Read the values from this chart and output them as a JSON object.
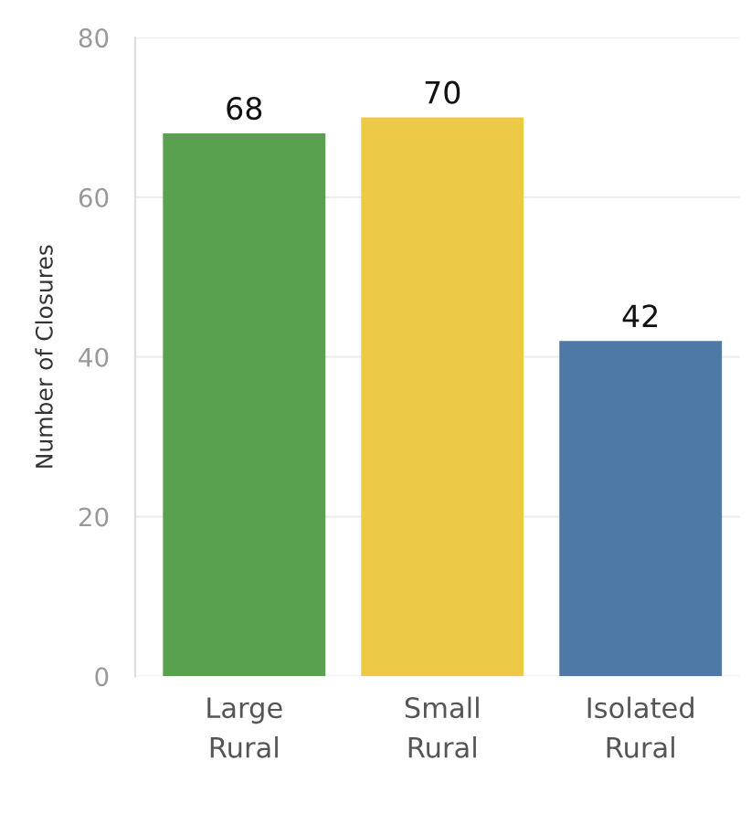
{
  "chart_data": {
    "type": "bar",
    "ylabel": "Number of Closures",
    "categories": [
      "Large\nRural",
      "Small\nRural",
      "Isolated\nRural"
    ],
    "values": [
      68,
      70,
      42
    ],
    "colors": [
      "#59a14f",
      "#edc948",
      "#4e79a7"
    ],
    "ylim": [
      0,
      80
    ],
    "yticks": [
      0,
      20,
      40,
      60,
      80
    ],
    "grid": "y",
    "data_labels": true
  }
}
